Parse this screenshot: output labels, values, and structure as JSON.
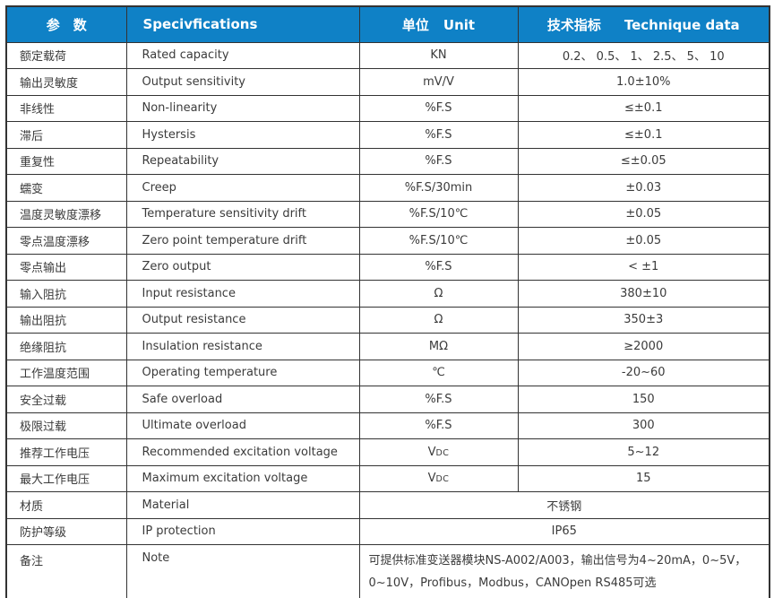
{
  "table": {
    "colors": {
      "header_bg": "#0f81c6",
      "header_text": "#ffffff",
      "border": "#333333",
      "body_text": "#3b3b3b"
    },
    "header": {
      "param": "参　数",
      "spec": "Specivfications",
      "unit_cn": "单位",
      "unit_en": "Unit",
      "data_cn": "技术指标",
      "data_en": "Technique data"
    },
    "rows": [
      {
        "param": "额定载荷",
        "spec": "Rated capacity",
        "unit": "KN",
        "value": "0.2、 0.5、 1、 2.5、 5、 10"
      },
      {
        "param": "输出灵敏度",
        "spec": "Output sensitivity",
        "unit": "mV/V",
        "value": "1.0±10%"
      },
      {
        "param": "非线性",
        "spec": "Non-linearity",
        "unit": "%F.S",
        "value": "≤±0.1"
      },
      {
        "param": "滞后",
        "spec": "Hystersis",
        "unit": "%F.S",
        "value": "≤±0.1"
      },
      {
        "param": "重复性",
        "spec": "Repeatability",
        "unit": "%F.S",
        "value": "≤±0.05"
      },
      {
        "param": "蠕变",
        "spec": "Creep",
        "unit": "%F.S/30min",
        "value": "±0.03"
      },
      {
        "param": "温度灵敏度漂移",
        "spec": "Temperature sensitivity drift",
        "unit": "%F.S/10℃",
        "value": "±0.05"
      },
      {
        "param": "零点温度漂移",
        "spec": "Zero point temperature drift",
        "unit": "%F.S/10℃",
        "value": "±0.05"
      },
      {
        "param": "零点输出",
        "spec": "Zero output",
        "unit": "%F.S",
        "value": "< ±1"
      },
      {
        "param": "输入阻抗",
        "spec": "Input resistance",
        "unit": "Ω",
        "value": "380±10"
      },
      {
        "param": "输出阻抗",
        "spec": "Output resistance",
        "unit": "Ω",
        "value": "350±3"
      },
      {
        "param": "绝缘阻抗",
        "spec": "Insulation resistance",
        "unit": "MΩ",
        "value": "≥2000"
      },
      {
        "param": "工作温度范围",
        "spec": "Operating temperature",
        "unit": "℃",
        "value": "-20~60"
      },
      {
        "param": "安全过载",
        "spec": "Safe overload",
        "unit": "%F.S",
        "value": "150"
      },
      {
        "param": "极限过载",
        "spec": "Ultimate overload",
        "unit": "%F.S",
        "value": "300"
      },
      {
        "param": "推荐工作电压",
        "spec": "Recommended excitation voltage",
        "unit": "V",
        "unit_sub": "DC",
        "value": "5~12"
      },
      {
        "param": "最大工作电压",
        "spec": "Maximum excitation voltage",
        "unit": "V",
        "unit_sub": "DC",
        "value": "15"
      },
      {
        "param": "材质",
        "spec": "Material",
        "merged": true,
        "align": "center",
        "value": "不锈钢"
      },
      {
        "param": "防护等级",
        "spec": "IP protection",
        "merged": true,
        "align": "center",
        "value": "IP65"
      },
      {
        "param": "备注",
        "spec": "Note",
        "merged": true,
        "align": "left",
        "lines": [
          "可提供标准变送器模块NS-A002/A003，输出信号为4~20mA，0~5V，",
          "0~10V，Profibus，Modbus，CANOpen  RS485可选"
        ]
      }
    ]
  }
}
